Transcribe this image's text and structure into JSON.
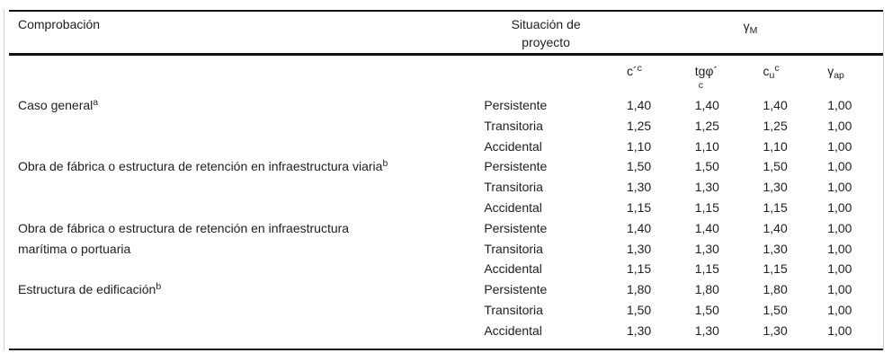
{
  "header": {
    "col_comprobacion": "Comprobación",
    "col_situacion_line1": "Situación de",
    "col_situacion_line2": "proyecto",
    "gamma_m": {
      "base": "γ",
      "sub": "M"
    },
    "symbols": {
      "c_eff": {
        "base": "c´",
        "sup": "c"
      },
      "tg_phi": {
        "base": "tgφ´",
        "sub": "c"
      },
      "cu": {
        "base": "c",
        "sub": "u",
        "sup": "c"
      },
      "gamma_ap": {
        "base": "γ",
        "sub": "ap"
      }
    }
  },
  "groups": [
    {
      "label_lines": [
        "Caso general"
      ],
      "footnote": "a",
      "rows": [
        {
          "situation": "Persistente",
          "values": [
            "1,40",
            "1,40",
            "1,40",
            "1,00"
          ]
        },
        {
          "situation": "Transitoria",
          "values": [
            "1,25",
            "1,25",
            "1,25",
            "1,00"
          ]
        },
        {
          "situation": "Accidental",
          "values": [
            "1,10",
            "1,10",
            "1,10",
            "1,00"
          ]
        }
      ]
    },
    {
      "label_lines": [
        "Obra de fábrica o estructura de retención en infraestructura viaria"
      ],
      "footnote": "b",
      "rows": [
        {
          "situation": "Persistente",
          "values": [
            "1,50",
            "1,50",
            "1,50",
            "1,00"
          ]
        },
        {
          "situation": "Transitoria",
          "values": [
            "1,30",
            "1,30",
            "1,30",
            "1,00"
          ]
        },
        {
          "situation": "Accidental",
          "values": [
            "1,15",
            "1,15",
            "1,15",
            "1,00"
          ]
        }
      ]
    },
    {
      "label_lines": [
        "Obra de fábrica o estructura de retención en infraestructura",
        "marítima o portuaria"
      ],
      "footnote": "",
      "rows": [
        {
          "situation": "Persistente",
          "values": [
            "1,40",
            "1,40",
            "1,40",
            "1,00"
          ]
        },
        {
          "situation": "Transitoria",
          "values": [
            "1,30",
            "1,30",
            "1,30",
            "1,00"
          ]
        },
        {
          "situation": "Accidental",
          "values": [
            "1,15",
            "1,15",
            "1,15",
            "1,00"
          ]
        }
      ]
    },
    {
      "label_lines": [
        "Estructura de edificación"
      ],
      "footnote": "b",
      "rows": [
        {
          "situation": "Persistente",
          "values": [
            "1,80",
            "1,80",
            "1,80",
            "1,00"
          ]
        },
        {
          "situation": "Transitoria",
          "values": [
            "1,50",
            "1,50",
            "1,50",
            "1,00"
          ]
        },
        {
          "situation": "Accidental",
          "values": [
            "1,30",
            "1,30",
            "1,30",
            "1,00"
          ]
        }
      ]
    }
  ],
  "colors": {
    "rule": "#121212",
    "side_border": "#cccccc",
    "text": "#1e1e1e",
    "background": "#ffffff"
  }
}
